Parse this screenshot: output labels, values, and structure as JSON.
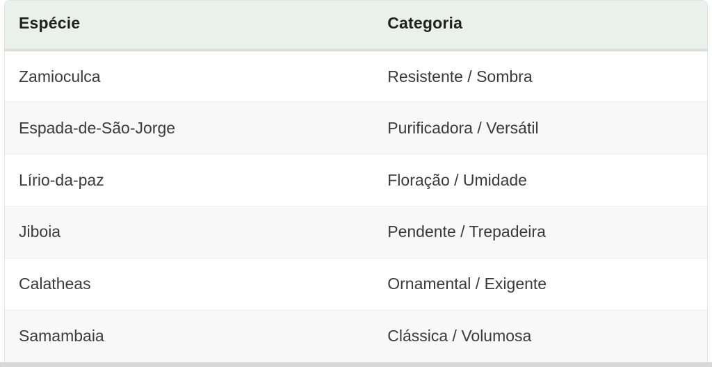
{
  "table": {
    "columns": [
      {
        "key": "especie",
        "label": "Espécie"
      },
      {
        "key": "categoria",
        "label": "Categoria"
      }
    ],
    "rows": [
      {
        "especie": "Zamioculca",
        "categoria": "Resistente / Sombra"
      },
      {
        "especie": "Espada-de-São-Jorge",
        "categoria": "Purificadora / Versátil"
      },
      {
        "especie": "Lírio-da-paz",
        "categoria": "Floração / Umidade"
      },
      {
        "especie": "Jiboia",
        "categoria": "Pendente / Trepadeira"
      },
      {
        "especie": "Calatheas",
        "categoria": "Ornamental / Exigente"
      },
      {
        "especie": "Samambaia",
        "categoria": "Clássica / Volumosa"
      }
    ]
  },
  "colors": {
    "header_bg": "#eaf0ea",
    "header_border": "#d9dfd9",
    "stripe_bg": "#f7f8f7",
    "row_border": "#eeeeee",
    "card_border": "#e3e3e3",
    "page_band": "#d9d9d9",
    "header_text": "#212121",
    "cell_text": "#3a3a3a"
  }
}
